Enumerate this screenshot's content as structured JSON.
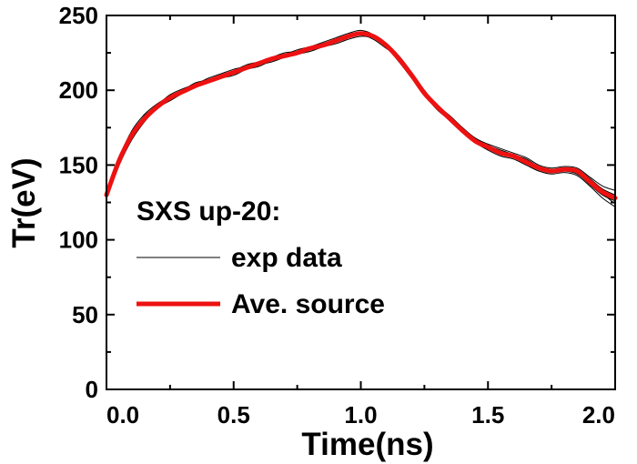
{
  "chart_data": {
    "type": "line",
    "xlabel": "Time(ns)",
    "ylabel": "Tr(eV)",
    "xlim": [
      0.0,
      2.0
    ],
    "ylim": [
      0,
      250
    ],
    "x_ticks": [
      "0.0",
      "0.5",
      "1.0",
      "1.5",
      "2.0"
    ],
    "y_ticks": [
      "0",
      "50",
      "100",
      "150",
      "200",
      "250"
    ],
    "grid": false,
    "legend": {
      "title": "SXS up-20:",
      "placement": "left",
      "entries": [
        {
          "label": "exp data",
          "color": "#000000"
        },
        {
          "label": "Ave. source",
          "color": "#ee1111"
        }
      ]
    },
    "x": [
      0.0,
      0.05,
      0.1,
      0.15,
      0.2,
      0.25,
      0.3,
      0.35,
      0.4,
      0.45,
      0.5,
      0.55,
      0.6,
      0.65,
      0.7,
      0.75,
      0.8,
      0.85,
      0.9,
      0.95,
      1.0,
      1.05,
      1.1,
      1.15,
      1.2,
      1.25,
      1.3,
      1.35,
      1.4,
      1.45,
      1.5,
      1.55,
      1.6,
      1.65,
      1.7,
      1.75,
      1.8,
      1.85,
      1.9,
      1.95,
      2.0
    ],
    "series": [
      {
        "name": "Ave. source",
        "color": "#ee1111",
        "values": [
          130,
          153,
          170,
          181,
          189,
          195,
          199,
          203,
          206,
          209,
          212,
          215,
          218,
          221,
          223,
          225,
          228,
          230,
          233,
          236,
          238,
          236,
          230,
          221,
          210,
          198,
          189,
          181,
          173,
          166,
          162,
          158,
          156,
          152,
          148,
          146,
          147,
          146,
          139,
          132,
          128
        ]
      },
      {
        "name": "exp data",
        "color": "#000000",
        "curves": [
          [
            131,
            155,
            173,
            184,
            191,
            196,
            200,
            205,
            207,
            210,
            213,
            217,
            219,
            222,
            224,
            227,
            229,
            231,
            234,
            237,
            239,
            236,
            231,
            220,
            209,
            197,
            188,
            180,
            172,
            166,
            161,
            157,
            155,
            151,
            147,
            145,
            146,
            144,
            137,
            130,
            126
          ],
          [
            129,
            150,
            167,
            179,
            188,
            193,
            198,
            202,
            205,
            208,
            211,
            214,
            216,
            220,
            222,
            224,
            226,
            229,
            232,
            235,
            237,
            234,
            228,
            222,
            211,
            199,
            190,
            182,
            174,
            168,
            163,
            160,
            157,
            154,
            149,
            147,
            148,
            147,
            141,
            134,
            130
          ],
          [
            133,
            156,
            171,
            183,
            190,
            197,
            201,
            204,
            208,
            211,
            214,
            216,
            219,
            222,
            225,
            226,
            229,
            232,
            235,
            238,
            240,
            237,
            229,
            219,
            208,
            197,
            187,
            180,
            172,
            165,
            160,
            156,
            154,
            150,
            146,
            144,
            145,
            143,
            136,
            128,
            122
          ],
          [
            128,
            151,
            169,
            180,
            188,
            194,
            198,
            202,
            205,
            208,
            210,
            214,
            217,
            219,
            222,
            225,
            227,
            229,
            231,
            234,
            236,
            235,
            231,
            223,
            212,
            200,
            190,
            183,
            175,
            168,
            164,
            161,
            158,
            155,
            150,
            148,
            149,
            148,
            142,
            136,
            133
          ],
          [
            132,
            154,
            171,
            182,
            190,
            195,
            200,
            204,
            207,
            210,
            213,
            215,
            219,
            221,
            224,
            226,
            228,
            230,
            233,
            236,
            238,
            236,
            230,
            221,
            209,
            198,
            189,
            181,
            173,
            167,
            162,
            159,
            157,
            152,
            148,
            146,
            147,
            146,
            140,
            132,
            127
          ],
          [
            130,
            152,
            169,
            181,
            189,
            196,
            199,
            203,
            206,
            209,
            212,
            215,
            218,
            221,
            223,
            225,
            228,
            231,
            234,
            237,
            239,
            236,
            229,
            220,
            210,
            198,
            188,
            181,
            173,
            166,
            161,
            157,
            155,
            151,
            147,
            145,
            146,
            145,
            139,
            131,
            124
          ]
        ]
      }
    ]
  }
}
